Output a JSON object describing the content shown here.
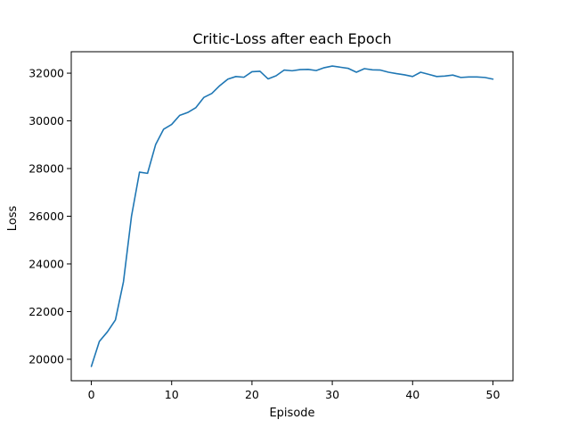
{
  "chart_data": {
    "type": "line",
    "title": "Critic-Loss after each Epoch",
    "xlabel": "Episode",
    "ylabel": "Loss",
    "xlim": [
      -2.5,
      52.5
    ],
    "ylim": [
      19100,
      32900
    ],
    "xticks": [
      0,
      10,
      20,
      30,
      40,
      50
    ],
    "yticks": [
      20000,
      22000,
      24000,
      26000,
      28000,
      30000,
      32000
    ],
    "grid": false,
    "line_color": "#1f77b4",
    "series": [
      {
        "x": [
          0,
          1,
          2,
          3,
          4,
          5,
          6,
          7,
          8,
          9,
          10,
          11,
          12,
          13,
          14,
          15,
          16,
          17,
          18,
          19,
          20,
          21,
          22,
          23,
          24,
          25,
          26,
          27,
          28,
          29,
          30,
          31,
          32,
          33,
          34,
          35,
          36,
          37,
          38,
          39,
          40,
          41,
          42,
          43,
          44,
          45,
          46,
          47,
          48,
          49,
          50
        ],
        "values": [
          19700,
          20750,
          21150,
          21650,
          23250,
          26000,
          27850,
          27800,
          29000,
          29650,
          29850,
          30230,
          30350,
          30550,
          30980,
          31150,
          31480,
          31750,
          31860,
          31830,
          32060,
          32080,
          31760,
          31890,
          32130,
          32100,
          32150,
          32160,
          32110,
          32230,
          32300,
          32250,
          32200,
          32040,
          32190,
          32140,
          32130,
          32040,
          31980,
          31930,
          31860,
          32040,
          31950,
          31860,
          31880,
          31920,
          31820,
          31840,
          31840,
          31820,
          31750
        ]
      }
    ]
  }
}
